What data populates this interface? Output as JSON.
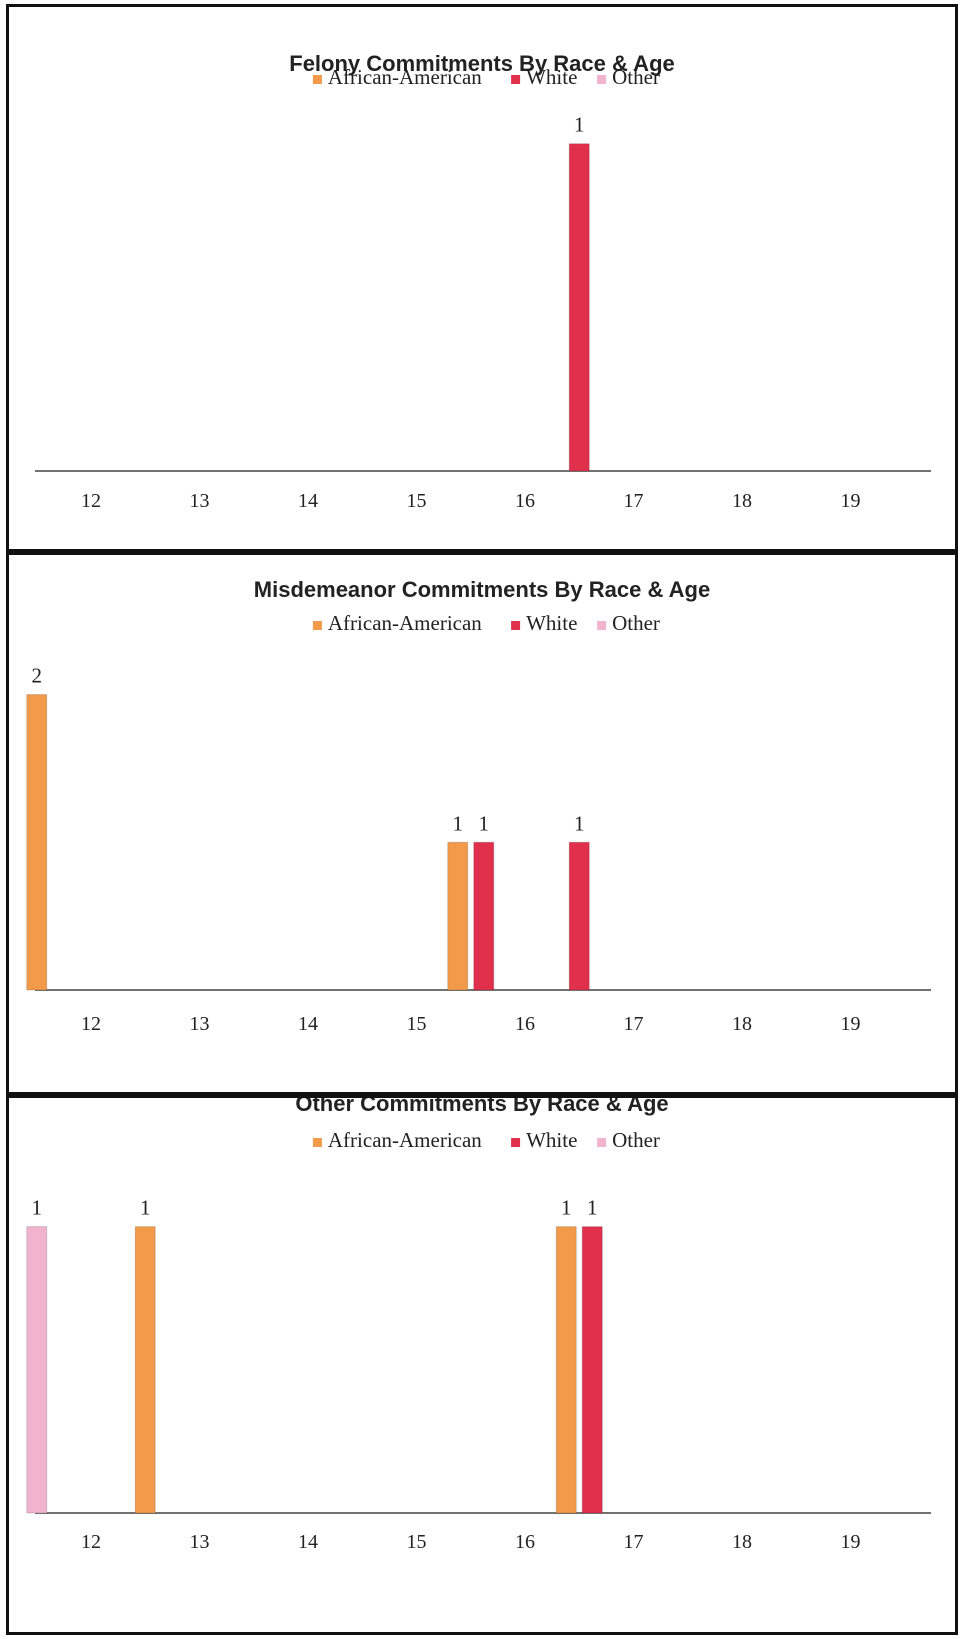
{
  "chart_data": [
    {
      "type": "bar",
      "title": "Felony Commitments By Race & Age",
      "categories": [
        "12",
        "13",
        "14",
        "15",
        "16",
        "17",
        "18",
        "19"
      ],
      "series": [
        {
          "name": "African-American",
          "color": "#f29a4a",
          "values": [
            0,
            0,
            0,
            0,
            0,
            0,
            0,
            0
          ]
        },
        {
          "name": "White",
          "color": "#e0304c",
          "values": [
            0,
            0,
            0,
            0,
            0,
            1,
            0,
            0
          ]
        },
        {
          "name": "Other",
          "color": "#f2b3cf",
          "values": [
            0,
            0,
            0,
            0,
            0,
            0,
            0,
            0
          ]
        }
      ],
      "ylim": [
        0,
        1.1
      ],
      "legend": "top",
      "grid": false
    },
    {
      "type": "bar",
      "title": "Misdemeanor Commitments By Race & Age",
      "categories": [
        "12",
        "13",
        "14",
        "15",
        "16",
        "17",
        "18",
        "19"
      ],
      "series": [
        {
          "name": "African-American",
          "color": "#f29a4a",
          "values": [
            2,
            0,
            0,
            0,
            1,
            0,
            0,
            0
          ]
        },
        {
          "name": "White",
          "color": "#e0304c",
          "values": [
            0,
            0,
            0,
            0,
            1,
            1,
            0,
            0
          ]
        },
        {
          "name": "Other",
          "color": "#f2b3cf",
          "values": [
            0,
            0,
            0,
            0,
            0,
            0,
            0,
            0
          ]
        }
      ],
      "ylim": [
        0,
        2.2
      ],
      "legend": "top",
      "grid": false
    },
    {
      "type": "bar",
      "title": "Other Commitments By Race & Age",
      "categories": [
        "12",
        "13",
        "14",
        "15",
        "16",
        "17",
        "18",
        "19"
      ],
      "series": [
        {
          "name": "African-American",
          "color": "#f29a4a",
          "values": [
            0,
            1,
            0,
            0,
            0,
            1,
            0,
            0
          ]
        },
        {
          "name": "White",
          "color": "#e0304c",
          "values": [
            0,
            0,
            0,
            0,
            0,
            1,
            0,
            0
          ]
        },
        {
          "name": "Other",
          "color": "#f2b3cf",
          "values": [
            1,
            0,
            0,
            0,
            0,
            0,
            0,
            0
          ]
        }
      ],
      "ylim": [
        0,
        1.1
      ],
      "legend": "top",
      "grid": false
    }
  ]
}
